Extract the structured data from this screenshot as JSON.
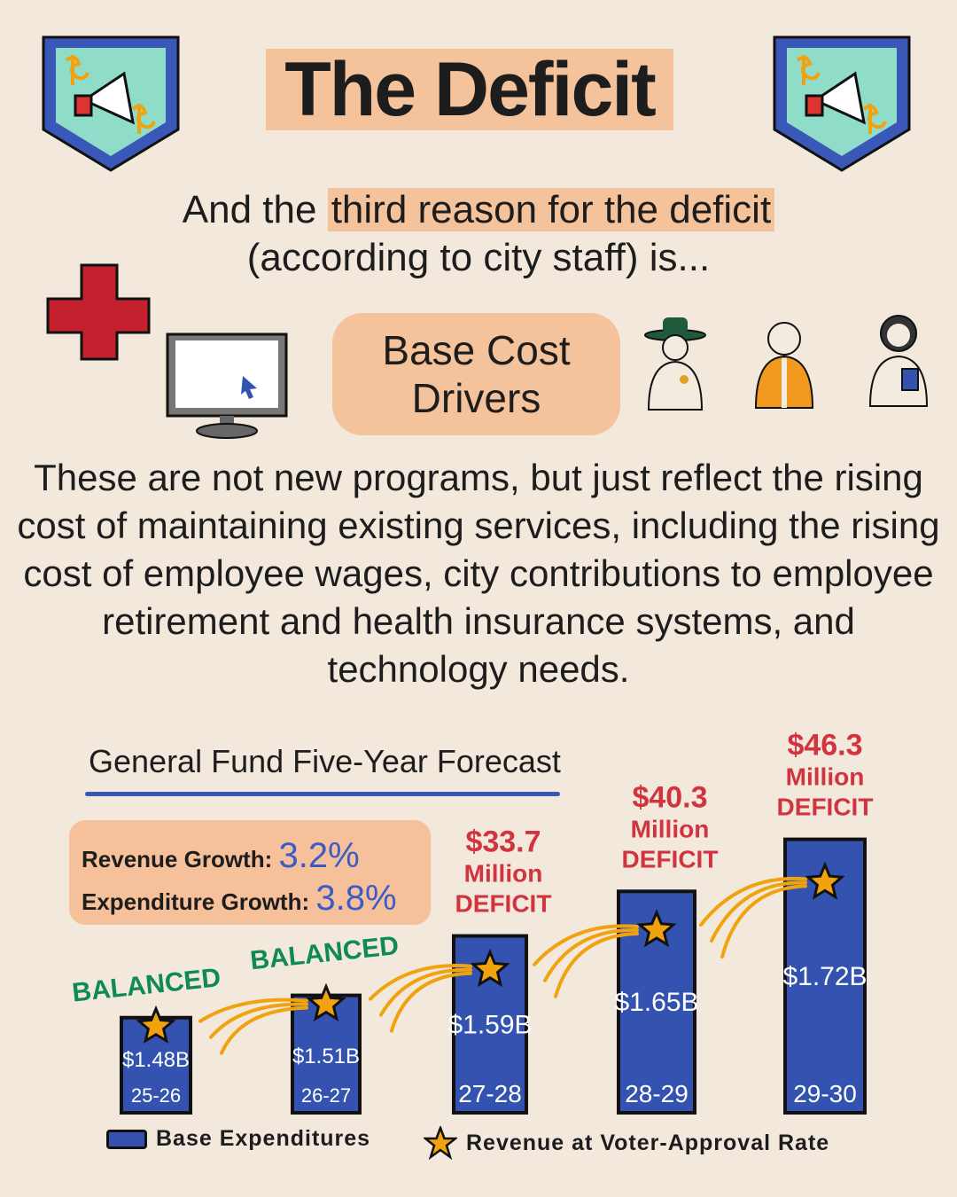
{
  "header": {
    "title": "The Deficit",
    "badge_icon": "megaphone-dollar-badge-icon"
  },
  "intro": {
    "part1": "And the ",
    "highlight": "third reason for the deficit",
    "part2": "(according to city staff) is..."
  },
  "pill": {
    "line1": "Base Cost",
    "line2": "Drivers"
  },
  "icons": [
    "medical-cross-icon",
    "computer-monitor-icon",
    "ranger-icon",
    "worker-vest-icon",
    "doctor-icon"
  ],
  "body_text": "These are not new programs, but just reflect the rising cost of maintaining existing services, including the rising cost of employee wages, city contributions to employee retirement and health insurance systems, and technology needs.",
  "forecast": {
    "title": "General Fund Five-Year Forecast",
    "revenue_growth_label": "Revenue Growth:",
    "revenue_growth_value": "3.2%",
    "expenditure_growth_label": "Expenditure Growth:",
    "expenditure_growth_value": "3.8%"
  },
  "colors": {
    "bar": "#3453b0",
    "star": "#f0a30e",
    "balanced": "#0f8a57",
    "deficit": "#d2343f",
    "highlight": "#f4c39b"
  },
  "chart_data": {
    "type": "bar",
    "title": "General Fund Five-Year Forecast",
    "categories": [
      "25-26",
      "26-27",
      "27-28",
      "28-29",
      "29-30"
    ],
    "series": [
      {
        "name": "Base Expenditures",
        "values": [
          1.48,
          1.51,
          1.59,
          1.65,
          1.72
        ],
        "labels": [
          "$1.48B",
          "$1.51B",
          "$1.59B",
          "$1.65B",
          "$1.72B"
        ]
      },
      {
        "name": "Revenue at Voter-Approval Rate",
        "marker": "star",
        "deficit_millions": [
          0,
          0,
          33.7,
          40.3,
          46.3
        ]
      }
    ],
    "annotations": [
      [
        "BALANCED"
      ],
      [
        "BALANCED"
      ],
      [
        "$33.7",
        "Million",
        "DEFICIT"
      ],
      [
        "$40.3",
        "Million",
        "DEFICIT"
      ],
      [
        "$46.3",
        "Million",
        "DEFICIT"
      ]
    ],
    "unit": "billions USD",
    "legend": "bottom"
  }
}
